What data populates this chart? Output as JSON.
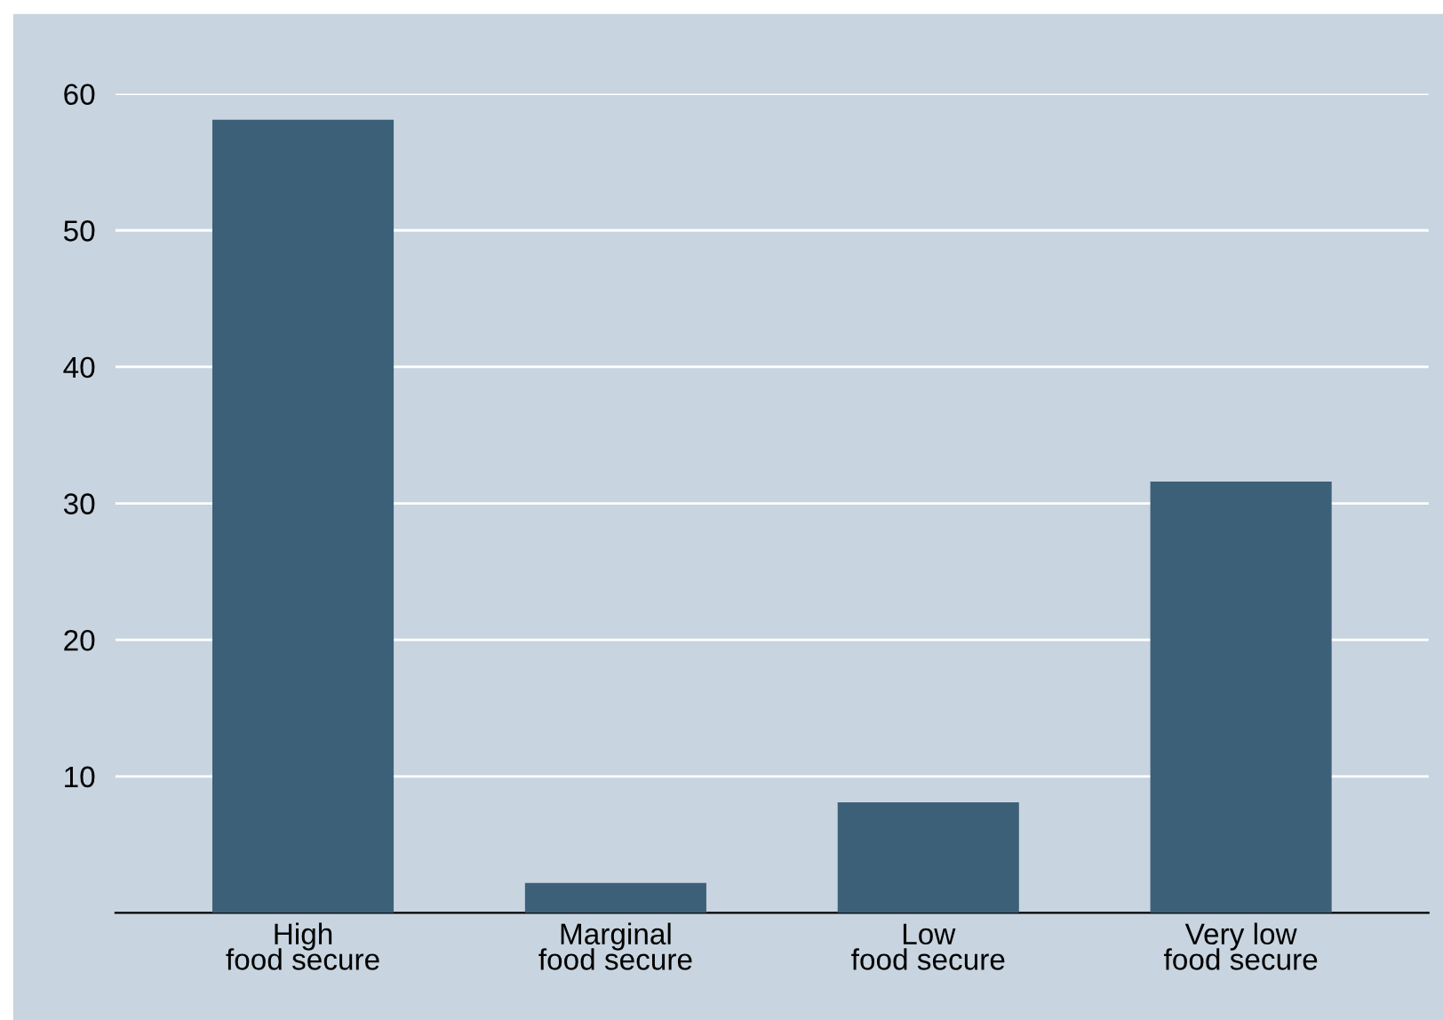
{
  "chart_data": {
    "type": "bar",
    "categories": [
      "High\nfood secure",
      "Marginal\nfood secure",
      "Low\nfood secure",
      "Very low\nfood secure"
    ],
    "values": [
      58.1,
      2.2,
      8.1,
      31.6
    ],
    "color": "#3d6079",
    "ylim": [
      0,
      60
    ],
    "yticks": [
      10,
      20,
      30,
      40,
      50,
      60
    ],
    "grid": "y"
  }
}
